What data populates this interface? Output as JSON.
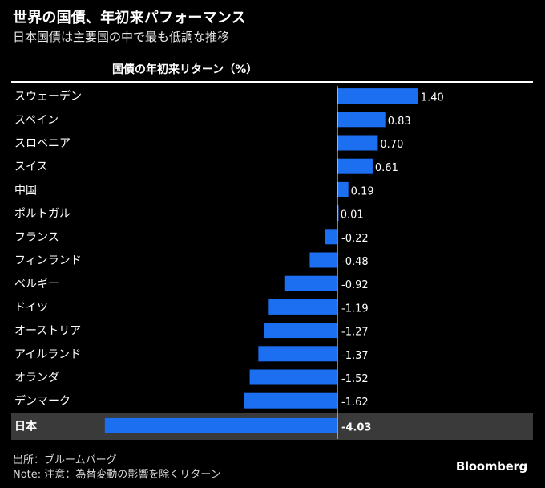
{
  "header": {
    "title": "世界の国債、年初来パフォーマンス",
    "subtitle": "日本国債は主要国の中で最も低調な推移",
    "column_label": "国債の年初来リターン（%）"
  },
  "footer": {
    "source": "出所：ブルームバーグ",
    "note": "Note: 注意：為替変動の影響を除くリターン",
    "brand": "Bloomberg"
  },
  "colors": {
    "bar": "#1d6ff2",
    "highlight_row": "#3a3a3a",
    "axis": "#ffffff"
  },
  "chart_data": {
    "type": "bar",
    "orientation": "horizontal",
    "title": "世界の国債、年初来パフォーマンス",
    "subtitle": "日本国債は主要国の中で最も低調な推移",
    "xlabel": "国債の年初来リターン（%）",
    "categories": [
      "スウェーデン",
      "スペイン",
      "スロベニア",
      "スイス",
      "中国",
      "ポルトガル",
      "フランス",
      "フィンランド",
      "ベルギー",
      "ドイツ",
      "オーストリア",
      "アイルランド",
      "オランダ",
      "デンマーク",
      "日本"
    ],
    "values": [
      1.4,
      0.83,
      0.7,
      0.61,
      0.19,
      0.01,
      -0.22,
      -0.48,
      -0.92,
      -1.19,
      -1.27,
      -1.37,
      -1.52,
      -1.62,
      -4.03
    ],
    "value_labels": [
      "1.40",
      "0.83",
      "0.70",
      "0.61",
      "0.19",
      "0.01",
      "-0.22",
      "-0.48",
      "-0.92",
      "-1.19",
      "-1.27",
      "-1.37",
      "-1.52",
      "-1.62",
      "-4.03"
    ],
    "highlighted_category": "日本",
    "xlim": [
      -4.03,
      1.4
    ],
    "grid": false,
    "legend": "none"
  }
}
